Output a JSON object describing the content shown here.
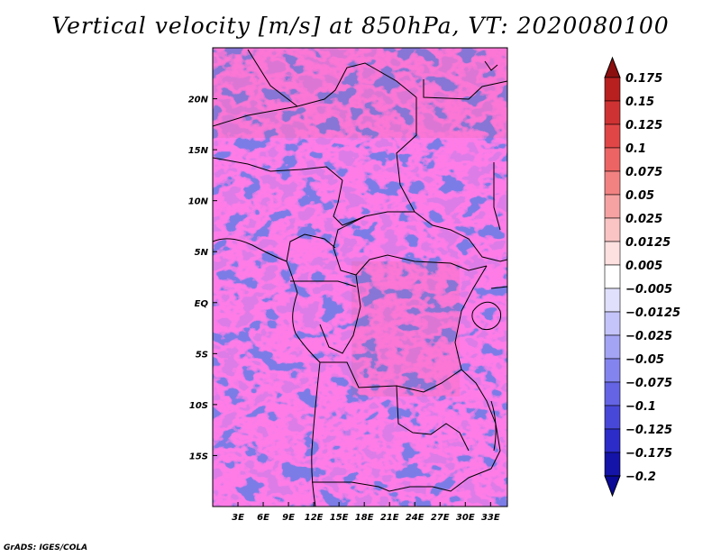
{
  "title": "Vertical velocity [m/s] at 850hPa, VT: 2020080100",
  "footer": "GrADS: IGES/COLA",
  "map": {
    "lon_range_deg": [
      0,
      35
    ],
    "lat_range_deg": [
      -20,
      25
    ],
    "x_ticks": [
      {
        "lon": 3,
        "label": "3E"
      },
      {
        "lon": 6,
        "label": "6E"
      },
      {
        "lon": 9,
        "label": "9E"
      },
      {
        "lon": 12,
        "label": "12E"
      },
      {
        "lon": 15,
        "label": "15E"
      },
      {
        "lon": 18,
        "label": "18E"
      },
      {
        "lon": 21,
        "label": "21E"
      },
      {
        "lon": 24,
        "label": "24E"
      },
      {
        "lon": 27,
        "label": "27E"
      },
      {
        "lon": 30,
        "label": "30E"
      },
      {
        "lon": 33,
        "label": "33E"
      }
    ],
    "y_ticks": [
      {
        "lat": 20,
        "label": "20N"
      },
      {
        "lat": 15,
        "label": "15N"
      },
      {
        "lat": 10,
        "label": "10N"
      },
      {
        "lat": 5,
        "label": "5N"
      },
      {
        "lat": 0,
        "label": "EQ"
      },
      {
        "lat": -5,
        "label": "5S"
      },
      {
        "lat": -10,
        "label": "10S"
      },
      {
        "lat": -15,
        "label": "15S"
      }
    ]
  },
  "colorbar": {
    "levels": [
      {
        "label": "0.175",
        "color": "#a01414"
      },
      {
        "label": "0.15",
        "color": "#b82020"
      },
      {
        "label": "0.125",
        "color": "#cf3232"
      },
      {
        "label": "0.1",
        "color": "#e14646"
      },
      {
        "label": "0.075",
        "color": "#ec6464"
      },
      {
        "label": "0.05",
        "color": "#f28282"
      },
      {
        "label": "0.025",
        "color": "#f6a2a2"
      },
      {
        "label": "0.0125",
        "color": "#fac4c4"
      },
      {
        "label": "0.005",
        "color": "#fde0e0"
      },
      {
        "label": "-0.005",
        "color": "#ffffff"
      },
      {
        "label": "-0.0125",
        "color": "#e0e0fc"
      },
      {
        "label": "-0.025",
        "color": "#c4c4fa"
      },
      {
        "label": "-0.05",
        "color": "#a4a4f4"
      },
      {
        "label": "-0.075",
        "color": "#8484ee"
      },
      {
        "label": "-0.1",
        "color": "#6464e4"
      },
      {
        "label": "-0.125",
        "color": "#4848d8"
      },
      {
        "label": "-0.175",
        "color": "#2c2cc8"
      },
      {
        "label": "-0.2",
        "color": "#1414a8"
      }
    ],
    "top_cap_color": "#8c0f0f",
    "bottom_cap_color": "#0a0a96"
  }
}
